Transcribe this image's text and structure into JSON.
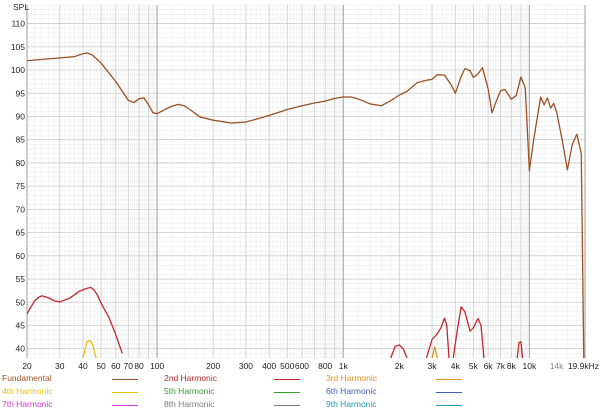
{
  "chart_data": {
    "type": "line",
    "title": "",
    "ylabel": "SPL",
    "xlabel": "",
    "x_scale": "log",
    "xlim": [
      20,
      19900
    ],
    "ylim": [
      38,
      114
    ],
    "grid": true,
    "x_ticks": [
      {
        "value": 20,
        "label": "20",
        "style": "major"
      },
      {
        "value": 30,
        "label": "30",
        "style": "minor"
      },
      {
        "value": 40,
        "label": "40",
        "style": "minor"
      },
      {
        "value": 50,
        "label": "50",
        "style": "minor"
      },
      {
        "value": 60,
        "label": "60",
        "style": "minor"
      },
      {
        "value": 70,
        "label": "70",
        "style": "minor"
      },
      {
        "value": 80,
        "label": "80",
        "style": "minor"
      },
      {
        "value": 100,
        "label": "100",
        "style": "major"
      },
      {
        "value": 200,
        "label": "200",
        "style": "minor"
      },
      {
        "value": 300,
        "label": "300",
        "style": "minor"
      },
      {
        "value": 400,
        "label": "400",
        "style": "minor"
      },
      {
        "value": 500,
        "label": "500",
        "style": "minor"
      },
      {
        "value": 600,
        "label": "600",
        "style": "minor"
      },
      {
        "value": 800,
        "label": "800",
        "style": "minor"
      },
      {
        "value": 1000,
        "label": "1k",
        "style": "major"
      },
      {
        "value": 2000,
        "label": "2k",
        "style": "minor"
      },
      {
        "value": 3000,
        "label": "3k",
        "style": "minor"
      },
      {
        "value": 4000,
        "label": "4k",
        "style": "minor"
      },
      {
        "value": 5000,
        "label": "5k",
        "style": "minor"
      },
      {
        "value": 6000,
        "label": "6k",
        "style": "minor"
      },
      {
        "value": 7000,
        "label": "7k",
        "style": "minor"
      },
      {
        "value": 8000,
        "label": "8k",
        "style": "minor"
      },
      {
        "value": 10000,
        "label": "10k",
        "style": "major"
      },
      {
        "value": 14000,
        "label": "14k",
        "style": "dim"
      },
      {
        "value": 19900,
        "label": "19.9kHz",
        "style": "major"
      }
    ],
    "y_ticks": [
      40,
      45,
      50,
      55,
      60,
      65,
      70,
      75,
      80,
      85,
      90,
      95,
      100,
      105,
      110
    ],
    "legend": {
      "placement": "bottom"
    },
    "series": [
      {
        "name": "Fundamental",
        "color": "#9a5224",
        "x": [
          20,
          24,
          28,
          32,
          36,
          40,
          42,
          45,
          50,
          60,
          70,
          75,
          80,
          85,
          90,
          95,
          100,
          110,
          120,
          130,
          140,
          150,
          170,
          200,
          250,
          300,
          400,
          500,
          600,
          700,
          800,
          900,
          1000,
          1100,
          1200,
          1400,
          1600,
          1800,
          2000,
          2200,
          2500,
          2800,
          3000,
          3200,
          3500,
          3800,
          4000,
          4300,
          4500,
          4800,
          5000,
          5300,
          5600,
          6000,
          6300,
          6600,
          7000,
          7400,
          8000,
          8500,
          9000,
          9500,
          10000,
          10500,
          11000,
          11500,
          12000,
          12500,
          13000,
          13500,
          14000,
          15000,
          16000,
          17000,
          18000,
          19000,
          19600
        ],
        "y": [
          102.0,
          102.3,
          102.5,
          102.7,
          102.9,
          103.5,
          103.7,
          103.2,
          101.5,
          97.5,
          93.5,
          93.0,
          93.8,
          94.0,
          92.5,
          90.8,
          90.6,
          91.5,
          92.2,
          92.6,
          92.3,
          91.5,
          89.9,
          89.2,
          88.6,
          88.8,
          90.2,
          91.5,
          92.3,
          92.9,
          93.3,
          93.9,
          94.2,
          94.2,
          93.8,
          92.7,
          92.3,
          93.4,
          94.6,
          95.4,
          97.3,
          97.8,
          98.0,
          99.0,
          98.9,
          96.8,
          95.0,
          98.6,
          100.3,
          99.9,
          98.4,
          99.2,
          100.5,
          96.0,
          90.8,
          93.0,
          95.5,
          95.8,
          93.7,
          94.5,
          98.5,
          96.2,
          78.3,
          84.5,
          89.5,
          94.2,
          92.5,
          94.0,
          91.8,
          92.8,
          91.0,
          85.0,
          78.5,
          84.0,
          86.2,
          82.0,
          38.0
        ]
      },
      {
        "name": "2nd Harmonic",
        "color": "#c0292d",
        "segments": [
          {
            "x": [
              20,
              21,
              22,
              23,
              24,
              26,
              28,
              30,
              34,
              38,
              40,
              42,
              44,
              46,
              48,
              50,
              55,
              60,
              65
            ],
            "y": [
              47.5,
              49.0,
              50.3,
              51.0,
              51.4,
              51.0,
              50.3,
              50.1,
              50.9,
              52.3,
              52.7,
              53.0,
              53.2,
              52.6,
              51.4,
              49.8,
              46.8,
              43.0,
              39.0
            ]
          },
          {
            "x": [
              1800,
              1900,
              2000,
              2100,
              2200
            ],
            "y": [
              38.0,
              40.5,
              40.8,
              40.0,
              38.0
            ]
          },
          {
            "x": [
              2800,
              3000,
              3200,
              3350,
              3500,
              3600,
              3700
            ],
            "y": [
              38.0,
              42.0,
              43.2,
              44.5,
              46.6,
              45.0,
              38.0
            ]
          },
          {
            "x": [
              3900,
              4100,
              4300,
              4500,
              4800,
              5000,
              5300,
              5500,
              5700
            ],
            "y": [
              38.0,
              44.0,
              49.0,
              48.0,
              43.8,
              44.5,
              46.5,
              45.0,
              38.0
            ]
          },
          {
            "x": [
              8600,
              8800,
              9000,
              9200
            ],
            "y": [
              38.0,
              41.3,
              41.5,
              38.0
            ]
          }
        ]
      },
      {
        "name": "3rd Harmonic",
        "color": "#e09428",
        "segments": [
          {
            "x": [
              3000,
              3100,
              3200
            ],
            "y": [
              38.0,
              40.4,
              38.0
            ]
          }
        ]
      },
      {
        "name": "4th Harmonic",
        "color": "#e8c20c",
        "segments": [
          {
            "x": [
              40,
              42,
              43.5,
              45,
              47
            ],
            "y": [
              38.0,
              41.5,
              41.8,
              41.0,
              38.0
            ]
          }
        ]
      },
      {
        "name": "5th Harmonic",
        "color": "#31a02e",
        "segments": []
      },
      {
        "name": "6th Harmonic",
        "color": "#3d5fc4",
        "segments": []
      },
      {
        "name": "7th Harmonic",
        "color": "#d23ad2",
        "segments": []
      },
      {
        "name": "8th Harmonic",
        "color": "#7a7a7a",
        "segments": []
      },
      {
        "name": "9th Harmonic",
        "color": "#1f9ab5",
        "segments": []
      }
    ]
  }
}
